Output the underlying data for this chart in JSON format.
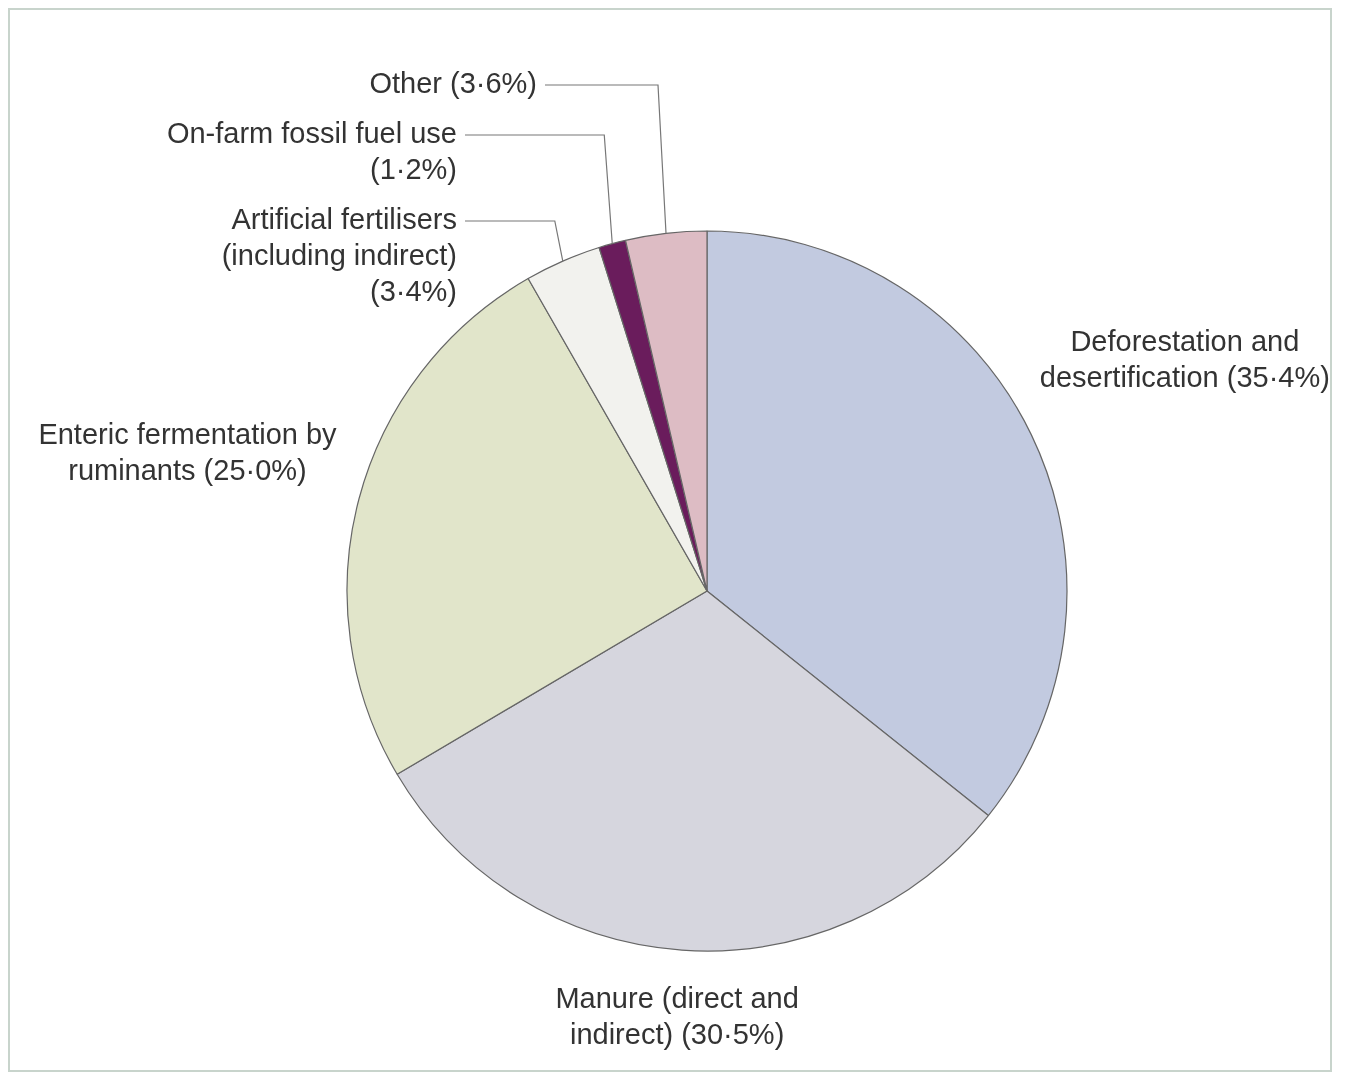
{
  "chart_data": {
    "type": "pie",
    "categories": [
      "Deforestation and desertification (35·4%)",
      "Manure (direct and indirect) (30·5%)",
      "Enteric fermentation by ruminants (25·0%)",
      "Artificial fertilisers (including indirect) (3·4%)",
      "On-farm fossil fuel use (1·2%)",
      "Other (3·6%)"
    ],
    "values": [
      35.4,
      30.5,
      25.0,
      3.4,
      1.2,
      3.6
    ],
    "colors": [
      "#c2cae0",
      "#d6d6de",
      "#e1e5ca",
      "#f2f2ee",
      "#6a1c5c",
      "#ddbcc4"
    ],
    "legend": false
  }
}
